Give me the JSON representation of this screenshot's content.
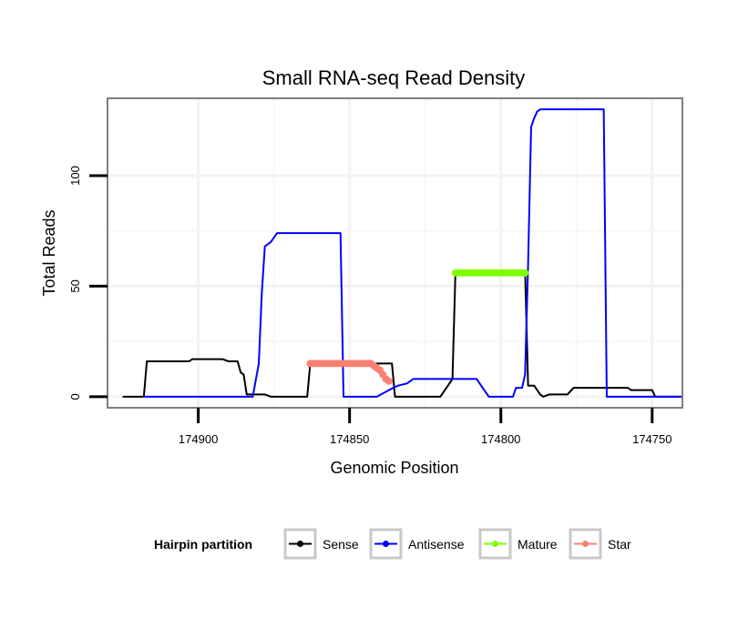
{
  "chart_data": {
    "type": "line",
    "title": "Small RNA-seq Read Density",
    "xlabel": "Genomic Position",
    "ylabel": "Total Reads",
    "x_reversed": true,
    "xlim": [
      174930,
      174740
    ],
    "ylim": [
      -5,
      135
    ],
    "x_ticks": [
      174900,
      174850,
      174800,
      174750
    ],
    "x_tick_labels": [
      "174900",
      "174850",
      "174800",
      "174750"
    ],
    "y_ticks": [
      0,
      50,
      100
    ],
    "y_tick_labels": [
      "0",
      "50",
      "100"
    ],
    "grid": true,
    "legend": {
      "title": "Hairpin partition",
      "position": "bottom",
      "entries": [
        "Sense",
        "Antisense",
        "Mature",
        "Star"
      ]
    },
    "colors": {
      "Sense": "#000000",
      "Antisense": "#0000ff",
      "Mature": "#7fff00",
      "Star": "#fa8072"
    },
    "series": [
      {
        "name": "Sense",
        "color": "#000000",
        "points": [
          [
            174925,
            0
          ],
          [
            174918,
            0
          ],
          [
            174917,
            16
          ],
          [
            174909,
            16
          ],
          [
            174908,
            16
          ],
          [
            174903,
            16
          ],
          [
            174902,
            17
          ],
          [
            174892,
            17
          ],
          [
            174890,
            16
          ],
          [
            174887,
            16
          ],
          [
            174886,
            11
          ],
          [
            174885,
            10
          ],
          [
            174884,
            1
          ],
          [
            174878,
            1
          ],
          [
            174876,
            0
          ],
          [
            174864,
            0
          ],
          [
            174863,
            15
          ],
          [
            174836,
            15
          ],
          [
            174835,
            0
          ],
          [
            174820,
            0
          ],
          [
            174818,
            4
          ],
          [
            174816,
            8
          ],
          [
            174815,
            57
          ],
          [
            174792,
            57
          ],
          [
            174791,
            5
          ],
          [
            174789,
            5
          ],
          [
            174787,
            1
          ],
          [
            174786,
            0
          ],
          [
            174784,
            1
          ],
          [
            174778,
            1
          ],
          [
            174776,
            4
          ],
          [
            174758,
            4
          ],
          [
            174757,
            3
          ],
          [
            174750,
            3
          ],
          [
            174749,
            0
          ],
          [
            174740,
            0
          ]
        ]
      },
      {
        "name": "Antisense",
        "color": "#0000ff",
        "points": [
          [
            174918,
            0
          ],
          [
            174882,
            0
          ],
          [
            174880,
            15
          ],
          [
            174879,
            47
          ],
          [
            174878,
            68
          ],
          [
            174876,
            70
          ],
          [
            174874,
            74
          ],
          [
            174853,
            74
          ],
          [
            174852,
            0
          ],
          [
            174841,
            0
          ],
          [
            174837,
            3
          ],
          [
            174834,
            5
          ],
          [
            174831,
            6
          ],
          [
            174829,
            8
          ],
          [
            174808,
            8
          ],
          [
            174806,
            4
          ],
          [
            174804,
            0
          ],
          [
            174796,
            0
          ],
          [
            174795,
            4
          ],
          [
            174793,
            4
          ],
          [
            174792,
            10
          ],
          [
            174791,
            60
          ],
          [
            174790,
            122
          ],
          [
            174789,
            126
          ],
          [
            174788,
            129
          ],
          [
            174787,
            130
          ],
          [
            174766,
            130
          ],
          [
            174765,
            0
          ],
          [
            174740,
            0
          ]
        ]
      },
      {
        "name": "Mature",
        "color": "#7fff00",
        "points": [
          [
            174815,
            56
          ],
          [
            174792,
            56
          ]
        ]
      },
      {
        "name": "Star",
        "color": "#fa8072",
        "points": [
          [
            174863,
            15
          ],
          [
            174845,
            15
          ],
          [
            174843,
            15
          ],
          [
            174842,
            14
          ],
          [
            174840,
            12
          ],
          [
            174838,
            8
          ],
          [
            174837,
            7
          ]
        ]
      }
    ]
  }
}
